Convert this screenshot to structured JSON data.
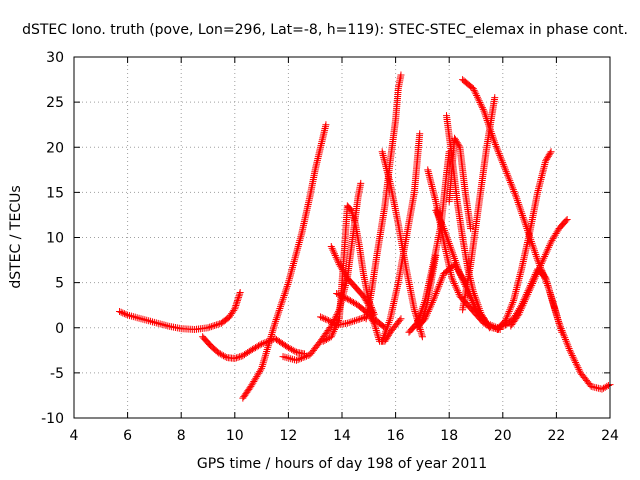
{
  "chart_data": {
    "type": "scatter",
    "title": "dSTEC Iono. truth (pove, Lon=296, Lat=-8, h=119): STEC-STEC_elemax in phase cont.",
    "xlabel": "GPS time / hours of day 198 of year 2011",
    "ylabel": "dSTEC  / TECUs",
    "xlim": [
      4,
      24
    ],
    "ylim": [
      -10,
      30
    ],
    "xticks": [
      4,
      6,
      8,
      10,
      12,
      14,
      16,
      18,
      20,
      22,
      24
    ],
    "yticks": [
      -10,
      -5,
      0,
      5,
      10,
      15,
      20,
      25,
      30
    ],
    "grid": true,
    "legend": "none",
    "marker": "+",
    "color": "#ff0000",
    "series": [
      {
        "x": [
          5.7,
          6.0,
          6.5,
          7.0,
          7.5,
          8.0,
          8.5,
          9.0,
          9.5,
          9.8,
          10.0,
          10.1,
          10.2
        ],
        "y": [
          1.8,
          1.4,
          1.0,
          0.6,
          0.2,
          -0.1,
          -0.2,
          0.0,
          0.5,
          1.2,
          2.1,
          3.0,
          3.9
        ]
      },
      {
        "x": [
          8.8,
          9.1,
          9.4,
          9.7,
          10.0,
          10.3,
          10.6,
          11.0,
          11.5,
          12.0,
          12.3,
          12.6
        ],
        "y": [
          -1.0,
          -2.0,
          -2.8,
          -3.3,
          -3.4,
          -3.1,
          -2.5,
          -1.8,
          -1.2,
          -2.2,
          -2.7,
          -2.9
        ]
      },
      {
        "x": [
          10.3,
          10.6,
          11.0,
          11.5,
          12.0,
          12.5,
          12.8,
          13.0,
          13.2,
          13.4
        ],
        "y": [
          -7.8,
          -6.5,
          -4.5,
          0.5,
          5.0,
          10.5,
          14.5,
          17.5,
          20.0,
          22.5
        ]
      },
      {
        "x": [
          11.8,
          12.3,
          12.8,
          13.2,
          13.6,
          13.9,
          14.2,
          14.4,
          14.6,
          14.7
        ],
        "y": [
          -3.2,
          -3.6,
          -3.0,
          -1.5,
          0.2,
          2.0,
          5.5,
          10.0,
          14.5,
          16.0
        ]
      },
      {
        "x": [
          13.3,
          13.6,
          13.9,
          14.0,
          14.1,
          14.2,
          14.35,
          14.5,
          14.65,
          14.8,
          15.0,
          15.2
        ],
        "y": [
          -1.5,
          -1.0,
          1.0,
          5.0,
          9.0,
          13.5,
          13.0,
          11.5,
          9.0,
          6.0,
          3.0,
          1.5
        ]
      },
      {
        "x": [
          13.2,
          13.5,
          13.8,
          14.2,
          14.6,
          14.9
        ],
        "y": [
          1.2,
          0.8,
          0.3,
          0.5,
          0.9,
          1.2
        ]
      },
      {
        "x": [
          14.9,
          15.1,
          15.3,
          15.6,
          15.8,
          16.0,
          16.1,
          16.2
        ],
        "y": [
          1.0,
          4.0,
          8.0,
          13.5,
          18.5,
          23.0,
          26.5,
          28.0
        ]
      },
      {
        "x": [
          13.8,
          14.2,
          14.6,
          15.0,
          15.2,
          15.4,
          15.6,
          15.8,
          16.2
        ],
        "y": [
          3.8,
          3.2,
          2.5,
          1.5,
          0.5,
          -1.5,
          -1.5,
          -0.5,
          1.0
        ]
      },
      {
        "x": [
          13.6,
          13.9,
          14.2,
          14.5,
          14.8,
          15.0,
          15.2,
          15.4,
          15.6
        ],
        "y": [
          9.0,
          7.0,
          5.5,
          4.5,
          3.5,
          2.5,
          1.0,
          0.5,
          0.0
        ]
      },
      {
        "x": [
          15.5,
          15.8,
          16.1,
          16.4,
          16.7,
          17.0
        ],
        "y": [
          19.5,
          16.0,
          11.5,
          6.5,
          2.0,
          -1.0
        ]
      },
      {
        "x": [
          15.5,
          15.8,
          16.1,
          16.4,
          16.7,
          16.9
        ],
        "y": [
          -1.5,
          1.0,
          5.0,
          10.0,
          15.0,
          21.5
        ]
      },
      {
        "x": [
          16.5,
          16.8,
          17.1,
          17.4,
          17.7,
          17.9,
          18.0
        ],
        "y": [
          -0.5,
          0.5,
          3.0,
          7.0,
          11.5,
          17.0,
          19.5
        ]
      },
      {
        "x": [
          16.8,
          17.0,
          17.2,
          17.5
        ],
        "y": [
          0.2,
          0.8,
          3.0,
          8.0
        ]
      },
      {
        "x": [
          17.2,
          17.5,
          17.8,
          18.1,
          18.4,
          18.7,
          19.0,
          19.3,
          19.6,
          19.9
        ],
        "y": [
          17.5,
          14.0,
          9.5,
          5.5,
          3.5,
          2.5,
          1.5,
          0.5,
          0.0,
          -0.2
        ]
      },
      {
        "x": [
          16.8,
          17.1,
          17.4,
          17.8,
          18.2,
          18.6,
          19.0,
          19.4,
          19.8
        ],
        "y": [
          0.0,
          1.0,
          3.0,
          6.0,
          7.0,
          5.0,
          2.0,
          0.5,
          0.0
        ]
      },
      {
        "x": [
          17.5,
          17.8,
          18.1,
          18.4,
          18.7,
          19.0,
          19.3
        ],
        "y": [
          13.0,
          11.0,
          8.5,
          6.0,
          4.0,
          2.0,
          1.0
        ]
      },
      {
        "x": [
          17.9,
          18.1,
          18.3,
          18.5,
          18.7,
          18.9,
          19.2,
          19.5
        ],
        "y": [
          23.5,
          19.0,
          14.0,
          10.0,
          6.5,
          4.0,
          1.5,
          0.0
        ]
      },
      {
        "x": [
          18.0,
          18.2,
          18.4,
          18.6,
          18.8
        ],
        "y": [
          14.0,
          21.0,
          20.0,
          15.0,
          11.0
        ]
      },
      {
        "x": [
          18.5,
          18.8,
          19.1,
          19.4,
          19.7
        ],
        "y": [
          2.0,
          7.0,
          13.5,
          20.0,
          25.5
        ]
      },
      {
        "x": [
          18.5,
          18.9,
          19.3,
          19.7,
          20.1,
          20.5,
          20.9,
          21.3,
          21.7,
          22.1
        ],
        "y": [
          27.5,
          26.5,
          24.0,
          20.5,
          17.5,
          14.5,
          11.0,
          7.5,
          4.5,
          0.5
        ]
      },
      {
        "x": [
          22.1,
          22.5,
          22.9,
          23.3,
          23.7,
          24.0
        ],
        "y": [
          0.5,
          -2.5,
          -5.0,
          -6.5,
          -6.8,
          -6.3
        ]
      },
      {
        "x": [
          19.8,
          20.1,
          20.4,
          20.7,
          21.0,
          21.3,
          21.6
        ],
        "y": [
          0.0,
          0.3,
          1.0,
          2.5,
          4.5,
          6.5,
          5.5
        ]
      },
      {
        "x": [
          19.8,
          20.1,
          20.4,
          20.7,
          21.0,
          21.3,
          21.6,
          21.8
        ],
        "y": [
          -0.2,
          0.8,
          3.0,
          6.5,
          10.5,
          15.0,
          18.5,
          19.5
        ]
      },
      {
        "x": [
          20.3,
          20.6,
          20.9,
          21.2,
          21.5,
          21.8,
          22.1,
          22.4
        ],
        "y": [
          0.2,
          1.5,
          3.5,
          5.5,
          7.5,
          9.5,
          11.0,
          12.0
        ]
      },
      {
        "x": [
          21.4,
          21.6,
          21.8,
          22.0,
          22.2
        ],
        "y": [
          6.5,
          5.5,
          3.5,
          1.5,
          -0.5
        ]
      }
    ]
  }
}
